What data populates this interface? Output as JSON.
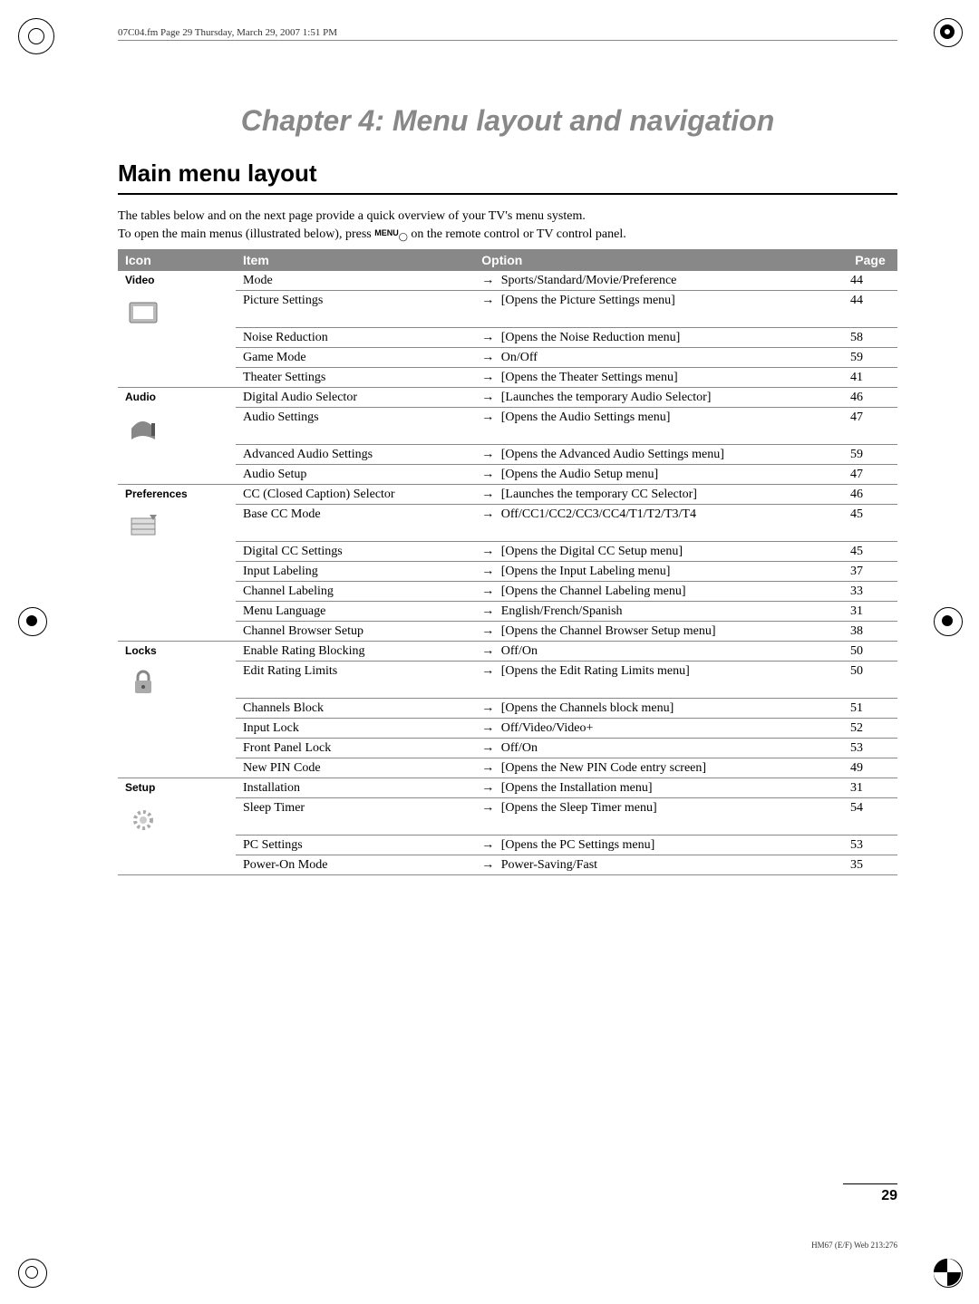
{
  "header_line": "07C04.fm  Page 29  Thursday, March 29, 2007  1:51 PM",
  "chapter_title": "Chapter 4: Menu layout and navigation",
  "section_title": "Main menu layout",
  "intro_line1": "The tables below and on the next page provide a quick overview of your TV's menu system.",
  "intro_line2_a": "To open the main menus (illustrated below), press ",
  "intro_line2_b": " on the remote control or TV control panel.",
  "menu_key_label": "MENU",
  "table": {
    "headers": {
      "icon": "Icon",
      "item": "Item",
      "option": "Option",
      "page": "Page"
    },
    "groups": [
      {
        "label": "Video",
        "icon_svg": "video",
        "rows": [
          {
            "item": "Mode",
            "option": "Sports/Standard/Movie/Preference",
            "page": "44"
          },
          {
            "item": "Picture Settings",
            "option": "[Opens the Picture Settings menu]",
            "page": "44"
          },
          {
            "item": "Noise Reduction",
            "option": "[Opens the Noise Reduction menu]",
            "page": "58"
          },
          {
            "item": "Game Mode",
            "option": "On/Off",
            "page": "59"
          },
          {
            "item": "Theater Settings",
            "option": "[Opens the Theater Settings menu]",
            "page": "41"
          }
        ]
      },
      {
        "label": "Audio",
        "icon_svg": "audio",
        "rows": [
          {
            "item": "Digital Audio Selector",
            "option": "[Launches the temporary Audio Selector]",
            "page": "46"
          },
          {
            "item": "Audio Settings",
            "option": "[Opens the Audio Settings menu]",
            "page": "47"
          },
          {
            "item": "Advanced Audio Settings",
            "option": "[Opens the Advanced Audio Settings menu]",
            "page": "59"
          },
          {
            "item": "Audio Setup",
            "option": "[Opens the Audio Setup menu]",
            "page": "47"
          }
        ]
      },
      {
        "label": "Preferences",
        "icon_svg": "prefs",
        "rows": [
          {
            "item": "CC (Closed Caption) Selector",
            "option": "[Launches the temporary CC Selector]",
            "page": "46"
          },
          {
            "item": "Base CC Mode",
            "option": "Off/CC1/CC2/CC3/CC4/T1/T2/T3/T4",
            "page": "45"
          },
          {
            "item": "Digital CC Settings",
            "option": "[Opens the Digital CC Setup menu]",
            "page": "45"
          },
          {
            "item": "Input Labeling",
            "option": "[Opens the Input Labeling menu]",
            "page": "37"
          },
          {
            "item": "Channel Labeling",
            "option": "[Opens the Channel Labeling menu]",
            "page": "33"
          },
          {
            "item": "Menu Language",
            "option": "English/French/Spanish",
            "page": "31"
          },
          {
            "item": "Channel Browser Setup",
            "option": "[Opens the Channel Browser Setup menu]",
            "page": "38"
          }
        ]
      },
      {
        "label": "Locks",
        "icon_svg": "locks",
        "rows": [
          {
            "item": "Enable Rating Blocking",
            "option": "Off/On",
            "page": "50"
          },
          {
            "item": "Edit Rating Limits",
            "option": "[Opens the Edit Rating Limits menu]",
            "page": "50"
          },
          {
            "item": "Channels Block",
            "option": "[Opens the Channels block menu]",
            "page": "51"
          },
          {
            "item": "Input Lock",
            "option": "Off/Video/Video+",
            "page": "52"
          },
          {
            "item": "Front Panel Lock",
            "option": "Off/On",
            "page": "53"
          },
          {
            "item": "New PIN Code",
            "option": "[Opens the New PIN Code entry screen]",
            "page": "49"
          }
        ]
      },
      {
        "label": "Setup",
        "icon_svg": "setup",
        "rows": [
          {
            "item": "Installation",
            "option": "[Opens the Installation menu]",
            "page": "31"
          },
          {
            "item": "Sleep Timer",
            "option": "[Opens the Sleep Timer menu]",
            "page": "54"
          },
          {
            "item": "PC Settings",
            "option": "[Opens the PC Settings menu]",
            "page": "53"
          },
          {
            "item": "Power-On Mode",
            "option": "Power-Saving/Fast",
            "page": "35"
          }
        ]
      }
    ]
  },
  "page_number": "29",
  "footer_note": "HM67 (E/F) Web 213:276",
  "style": {
    "colors": {
      "header_bg": "#888888",
      "header_text": "#ffffff",
      "chapter_title": "#888888",
      "rule": "#888888",
      "text": "#000000"
    },
    "fonts": {
      "body": "Times New Roman",
      "heading": "Arial",
      "body_size_pt": 11,
      "chapter_size_pt": 24,
      "section_size_pt": 20
    }
  }
}
